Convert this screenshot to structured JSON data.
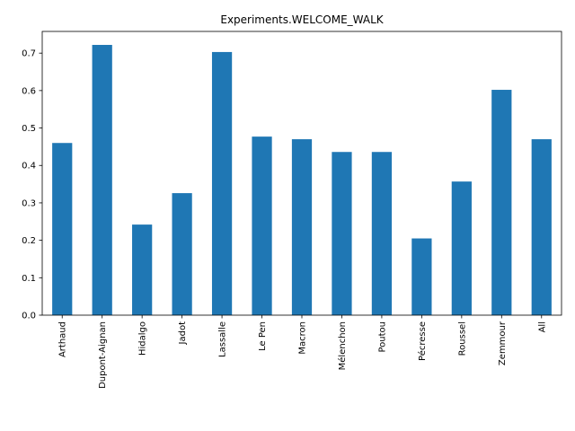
{
  "chart_data": {
    "type": "bar",
    "title": "Experiments.WELCOME_WALK",
    "xlabel": "",
    "ylabel": "",
    "categories": [
      "Arthaud",
      "Dupont-Aignan",
      "Hidalgo",
      "Jadot",
      "Lassalle",
      "Le Pen",
      "Macron",
      "Mélenchon",
      "Poutou",
      "Pécresse",
      "Roussel",
      "Zemmour",
      "All"
    ],
    "values": [
      0.46,
      0.722,
      0.242,
      0.326,
      0.703,
      0.477,
      0.47,
      0.436,
      0.436,
      0.205,
      0.357,
      0.602,
      0.47
    ],
    "ylim": [
      0,
      0.758
    ],
    "yticks": [
      "0.0",
      "0.1",
      "0.2",
      "0.3",
      "0.4",
      "0.5",
      "0.6",
      "0.7"
    ],
    "bar_color": "#1f77b4",
    "grid": false,
    "legend": "none"
  }
}
